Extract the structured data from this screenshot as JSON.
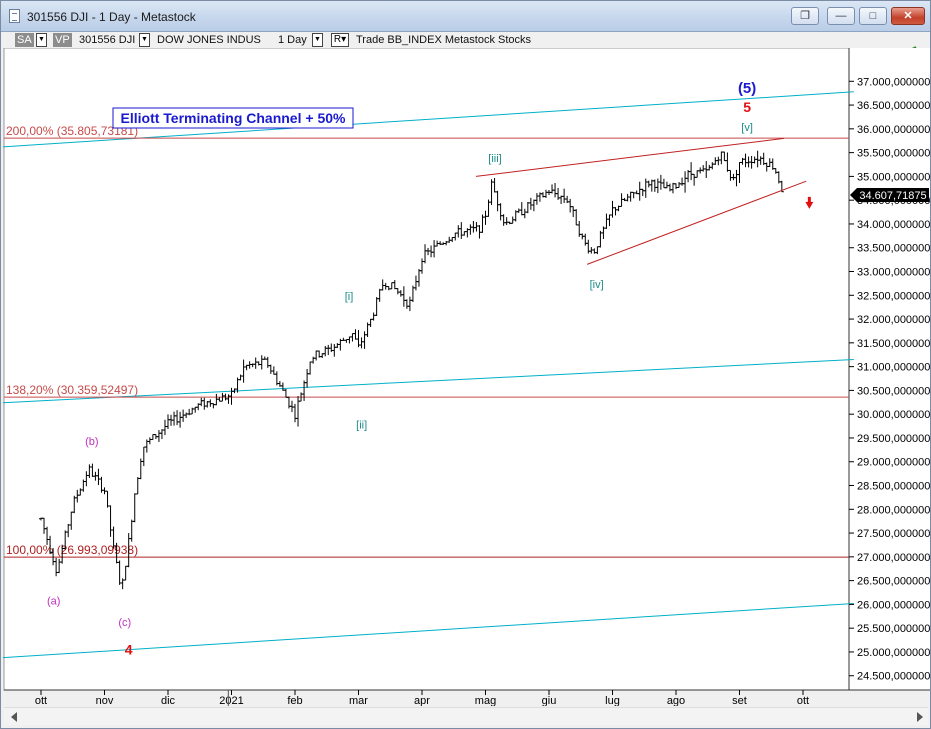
{
  "window": {
    "title": "301556 DJI - 1 Day - Metastock",
    "buttons": [
      "restore-down",
      "minimize",
      "maximize",
      "close"
    ]
  },
  "toolbar": {
    "sa_badge": "SA",
    "vp_badge": "VP",
    "symbol": "301556 DJI",
    "security_name": "DOW JONES INDUS",
    "period": "1 Day",
    "r_label": "R",
    "extra": "Trade  BB_INDEX  Metastock  Stocks"
  },
  "chart_data": {
    "type": "ohlc",
    "title": "Elliott Terminating Channel + 50%",
    "xlabel": "",
    "ylabel": "",
    "ylim": [
      24200,
      37700
    ],
    "y_ticks": [
      "24.500,000000",
      "25.000,000000",
      "25.500,000000",
      "26.000,000000",
      "26.500,000000",
      "27.000,000000",
      "27.500,000000",
      "28.000,000000",
      "28.500,000000",
      "29.000,000000",
      "29.500,000000",
      "30.000,000000",
      "30.500,000000",
      "31.000,000000",
      "31.500,000000",
      "32.000,000000",
      "32.500,000000",
      "33.000,000000",
      "33.500,000000",
      "34.000,000000",
      "34.500,000000",
      "35.000,000000",
      "35.500,000000",
      "36.000,000000",
      "36.500,000000",
      "37.000,000000"
    ],
    "x_ticks": [
      "ott",
      "nov",
      "dic",
      "2021",
      "feb",
      "mar",
      "apr",
      "mag",
      "giu",
      "lug",
      "ago",
      "set",
      "ott"
    ],
    "last_price": "34.607,71875",
    "price_path": [
      {
        "m": 0.0,
        "v": 27800
      },
      {
        "m": 0.25,
        "v": 26700
      },
      {
        "m": 0.5,
        "v": 28100
      },
      {
        "m": 0.75,
        "v": 28850
      },
      {
        "m": 1.0,
        "v": 28400
      },
      {
        "m": 1.15,
        "v": 27100
      },
      {
        "m": 1.27,
        "v": 26300
      },
      {
        "m": 1.4,
        "v": 27500
      },
      {
        "m": 1.47,
        "v": 28300
      },
      {
        "m": 1.6,
        "v": 29300
      },
      {
        "m": 2.0,
        "v": 29800
      },
      {
        "m": 2.5,
        "v": 30200
      },
      {
        "m": 3.0,
        "v": 30400
      },
      {
        "m": 3.2,
        "v": 31000
      },
      {
        "m": 3.55,
        "v": 31100
      },
      {
        "m": 3.8,
        "v": 30500
      },
      {
        "m": 4.0,
        "v": 30000
      },
      {
        "m": 4.25,
        "v": 31200
      },
      {
        "m": 4.6,
        "v": 31400
      },
      {
        "m": 4.9,
        "v": 31700
      },
      {
        "m": 5.0,
        "v": 31400
      },
      {
        "m": 5.2,
        "v": 32000
      },
      {
        "m": 5.4,
        "v": 32800
      },
      {
        "m": 5.6,
        "v": 32600
      },
      {
        "m": 5.8,
        "v": 32300
      },
      {
        "m": 6.0,
        "v": 33300
      },
      {
        "m": 6.5,
        "v": 33800
      },
      {
        "m": 6.9,
        "v": 33900
      },
      {
        "m": 7.0,
        "v": 34200
      },
      {
        "m": 7.1,
        "v": 34850
      },
      {
        "m": 7.3,
        "v": 34000
      },
      {
        "m": 7.6,
        "v": 34300
      },
      {
        "m": 8.0,
        "v": 34700
      },
      {
        "m": 8.3,
        "v": 34500
      },
      {
        "m": 8.55,
        "v": 33600
      },
      {
        "m": 8.7,
        "v": 33400
      },
      {
        "m": 9.0,
        "v": 34300
      },
      {
        "m": 9.3,
        "v": 34600
      },
      {
        "m": 9.6,
        "v": 34900
      },
      {
        "m": 9.9,
        "v": 34700
      },
      {
        "m": 10.2,
        "v": 35050
      },
      {
        "m": 10.5,
        "v": 35100
      },
      {
        "m": 10.7,
        "v": 35500
      },
      {
        "m": 10.9,
        "v": 34900
      },
      {
        "m": 11.0,
        "v": 35300
      },
      {
        "m": 11.3,
        "v": 35400
      },
      {
        "m": 11.55,
        "v": 35200
      },
      {
        "m": 11.7,
        "v": 34600
      }
    ],
    "horizontal_levels": [
      {
        "label": "200,00% (35.805,73181)",
        "value": 35805.73181,
        "color": "#c84a4a"
      },
      {
        "label": "138,20% (30.359,52497)",
        "value": 30359.52497,
        "color": "#c84a4a"
      },
      {
        "label": "100,00% (26.993,09938)",
        "value": 26993.09938,
        "color": "#b02020"
      }
    ],
    "channel_lines": [
      {
        "from": {
          "m": -0.6,
          "v": 35620
        },
        "to": {
          "m": 12.8,
          "v": 36780
        },
        "color": "#00b0c8"
      },
      {
        "from": {
          "m": -0.6,
          "v": 30240
        },
        "to": {
          "m": 12.8,
          "v": 31150
        },
        "color": "#00b0c8"
      },
      {
        "from": {
          "m": -0.6,
          "v": 24880
        },
        "to": {
          "m": 12.8,
          "v": 26020
        },
        "color": "#00b0c8"
      }
    ],
    "wedge_lines": [
      {
        "from": {
          "m": 6.85,
          "v": 35000
        },
        "to": {
          "m": 11.7,
          "v": 35800
        },
        "color": "#c02020"
      },
      {
        "from": {
          "m": 8.6,
          "v": 33150
        },
        "to": {
          "m": 12.05,
          "v": 34900
        },
        "color": "#c02020"
      }
    ],
    "wave_labels": [
      {
        "text": "(5)",
        "m": 11.12,
        "v": 36750,
        "color": "#1a1ad0",
        "size": 15,
        "bold": true
      },
      {
        "text": "5",
        "m": 11.12,
        "v": 36350,
        "color": "#e01010",
        "size": 14,
        "bold": true
      },
      {
        "text": "[v]",
        "m": 11.12,
        "v": 35950,
        "color": "#1a8c8c",
        "size": 11,
        "bold": false
      },
      {
        "text": "[iii]",
        "m": 7.15,
        "v": 35300,
        "color": "#1a8c8c",
        "size": 11,
        "bold": false
      },
      {
        "text": "[iv]",
        "m": 8.75,
        "v": 32650,
        "color": "#1a8c8c",
        "size": 11,
        "bold": false
      },
      {
        "text": "[i]",
        "m": 4.85,
        "v": 32400,
        "color": "#1a8c8c",
        "size": 11,
        "bold": false
      },
      {
        "text": "[ii]",
        "m": 5.05,
        "v": 29700,
        "color": "#1a8c8c",
        "size": 11,
        "bold": false
      },
      {
        "text": "(b)",
        "m": 0.8,
        "v": 29350,
        "color": "#c030c0",
        "size": 11,
        "bold": false
      },
      {
        "text": "(a)",
        "m": 0.2,
        "v": 26000,
        "color": "#c030c0",
        "size": 11,
        "bold": false
      },
      {
        "text": "(c)",
        "m": 1.32,
        "v": 25550,
        "color": "#c030c0",
        "size": 11,
        "bold": false
      },
      {
        "text": "4",
        "m": 1.38,
        "v": 24950,
        "color": "#e01010",
        "size": 14,
        "bold": true
      }
    ],
    "signal_arrow": {
      "m": 12.1,
      "v": 34380,
      "color": "#e01010",
      "direction": "down"
    },
    "last_price_marker": {
      "v": 34607.71875
    }
  }
}
